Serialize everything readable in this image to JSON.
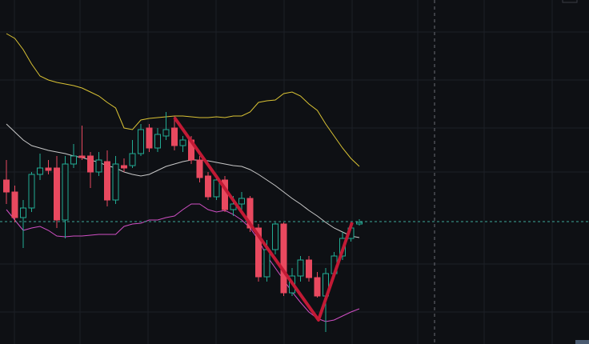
{
  "chart_data": {
    "type": "candlestick",
    "open": [
      205,
      190,
      158,
      170,
      212,
      220,
      220,
      155,
      225,
      235,
      235,
      215,
      228,
      180,
      223,
      223,
      238,
      270,
      245,
      260,
      270,
      248,
      255,
      230,
      210,
      184,
      205,
      168,
      175,
      182,
      145,
      84,
      118,
      150,
      64,
      85,
      105,
      83,
      60,
      88,
      110,
      132,
      150
    ],
    "high": [
      230,
      198,
      180,
      215,
      238,
      230,
      235,
      235,
      250,
      273,
      240,
      240,
      242,
      235,
      232,
      255,
      275,
      275,
      270,
      290,
      285,
      260,
      260,
      235,
      215,
      210,
      210,
      185,
      190,
      185,
      150,
      130,
      152,
      152,
      95,
      110,
      110,
      90,
      95,
      115,
      140,
      150,
      156
    ],
    "low": [
      175,
      152,
      120,
      165,
      205,
      212,
      145,
      132,
      220,
      230,
      195,
      210,
      172,
      175,
      215,
      220,
      235,
      240,
      240,
      255,
      242,
      240,
      225,
      202,
      180,
      180,
      165,
      160,
      168,
      140,
      78,
      78,
      112,
      60,
      60,
      78,
      78,
      58,
      15,
      85,
      105,
      128,
      148
    ],
    "close": [
      190,
      158,
      170,
      212,
      220,
      217,
      155,
      225,
      235,
      233,
      215,
      230,
      180,
      225,
      220,
      238,
      268,
      245,
      262,
      268,
      248,
      255,
      230,
      208,
      184,
      205,
      168,
      175,
      182,
      145,
      84,
      118,
      150,
      64,
      85,
      105,
      83,
      60,
      88,
      110,
      132,
      145,
      152
    ],
    "up_color": "#22ab94",
    "down_color": "#e8495f",
    "lines": [
      {
        "color": "#d9c234",
        "values": [
          388,
          382,
          368,
          350,
          335,
          330,
          327,
          325,
          323,
          320,
          315,
          310,
          302,
          295,
          270,
          268,
          280,
          282,
          283,
          284,
          285,
          285,
          284,
          283,
          283,
          284,
          283,
          285,
          285,
          290,
          302,
          304,
          305,
          313,
          315,
          310,
          300,
          292,
          275,
          260,
          245,
          232,
          222
        ]
      },
      {
        "color": "#c8c8c8",
        "values": [
          275,
          265,
          255,
          248,
          245,
          242,
          240,
          238,
          235,
          233,
          230,
          227,
          223,
          220,
          215,
          212,
          210,
          212,
          217,
          222,
          225,
          228,
          230,
          230,
          229,
          227,
          225,
          223,
          222,
          218,
          212,
          205,
          198,
          190,
          182,
          175,
          167,
          160,
          152,
          145,
          140,
          135,
          133
        ]
      },
      {
        "color": "#d04fc4",
        "values": [
          168,
          155,
          142,
          145,
          147,
          142,
          135,
          134,
          135,
          135,
          136,
          137,
          137,
          137,
          147,
          150,
          151,
          155,
          155,
          158,
          160,
          168,
          175,
          175,
          168,
          165,
          167,
          162,
          155,
          145,
          130,
          110,
          95,
          80,
          65,
          52,
          40,
          32,
          28,
          30,
          35,
          40,
          44
        ]
      }
    ],
    "last_price": 153,
    "last_price_color": "#3fa89a",
    "ylim": [
      0,
      430
    ]
  }
}
